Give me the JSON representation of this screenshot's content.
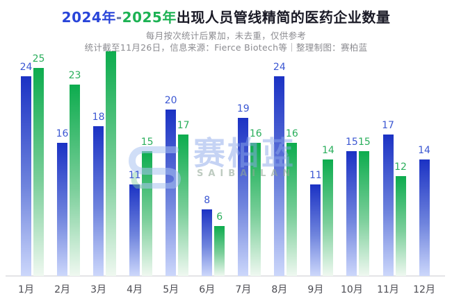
{
  "title": {
    "year1": "2024年",
    "dash": "-",
    "year2": "2025年",
    "rest": "出现人员管线精简的医药企业数量"
  },
  "subtitle_line1": "每月按次统计后累加，未去重，仅供参考",
  "subtitle_line2": "统计截至11月26日，信息来源：Fierce Biotech等｜整理制图：赛柏蓝",
  "watermark": {
    "logo": "saibailan-logo",
    "text": "赛柏蓝",
    "subtext": "SAIBAILAN"
  },
  "colors": {
    "series_2024_top": "#1b32c4",
    "series_2024_bottom": "#ccd7fb",
    "series_2025_top": "#0dac4e",
    "series_2025_bottom": "#eff8f0",
    "label_2024": "#3b57d2",
    "label_2025": "#29ae5b",
    "title_2024": "#2945d9",
    "title_2025": "#1db254",
    "axis_line": "#e4e4e7"
  },
  "chart_data": {
    "type": "bar",
    "title": "2024年-2025年出现人员管线精简的医药企业数量",
    "xlabel": "",
    "ylabel": "",
    "grid": false,
    "legend_position": "in-title",
    "ylim": [
      0,
      28
    ],
    "categories": [
      "1月",
      "2月",
      "3月",
      "4月",
      "5月",
      "6月",
      "7月",
      "8月",
      "9月",
      "10月",
      "11月",
      "12月"
    ],
    "series": [
      {
        "name": "2024年",
        "color": "#1b32c4",
        "values": [
          24,
          16,
          18,
          11,
          20,
          8,
          19,
          24,
          11,
          15,
          17,
          14
        ]
      },
      {
        "name": "2025年",
        "color": "#0dac4e",
        "values": [
          25,
          23,
          27,
          15,
          17,
          6,
          16,
          16,
          14,
          15,
          12,
          null
        ]
      }
    ],
    "months": [
      {
        "label": "1月",
        "y2024": 24,
        "y2025": 25
      },
      {
        "label": "2月",
        "y2024": 16,
        "y2025": 23
      },
      {
        "label": "3月",
        "y2024": 18,
        "y2025": 27,
        "y2025_label_hidden": true
      },
      {
        "label": "4月",
        "y2024": 11,
        "y2025": 15
      },
      {
        "label": "5月",
        "y2024": 20,
        "y2025": 17
      },
      {
        "label": "6月",
        "y2024": 8,
        "y2025": 6
      },
      {
        "label": "7月",
        "y2024": 19,
        "y2025": 16
      },
      {
        "label": "8月",
        "y2024": 24,
        "y2025": 16
      },
      {
        "label": "9月",
        "y2024": 11,
        "y2025": 14
      },
      {
        "label": "10月",
        "y2024": 15,
        "y2025": 15
      },
      {
        "label": "11月",
        "y2024": 17,
        "y2025": 12
      },
      {
        "label": "12月",
        "y2024": 14,
        "y2025": null
      }
    ]
  }
}
